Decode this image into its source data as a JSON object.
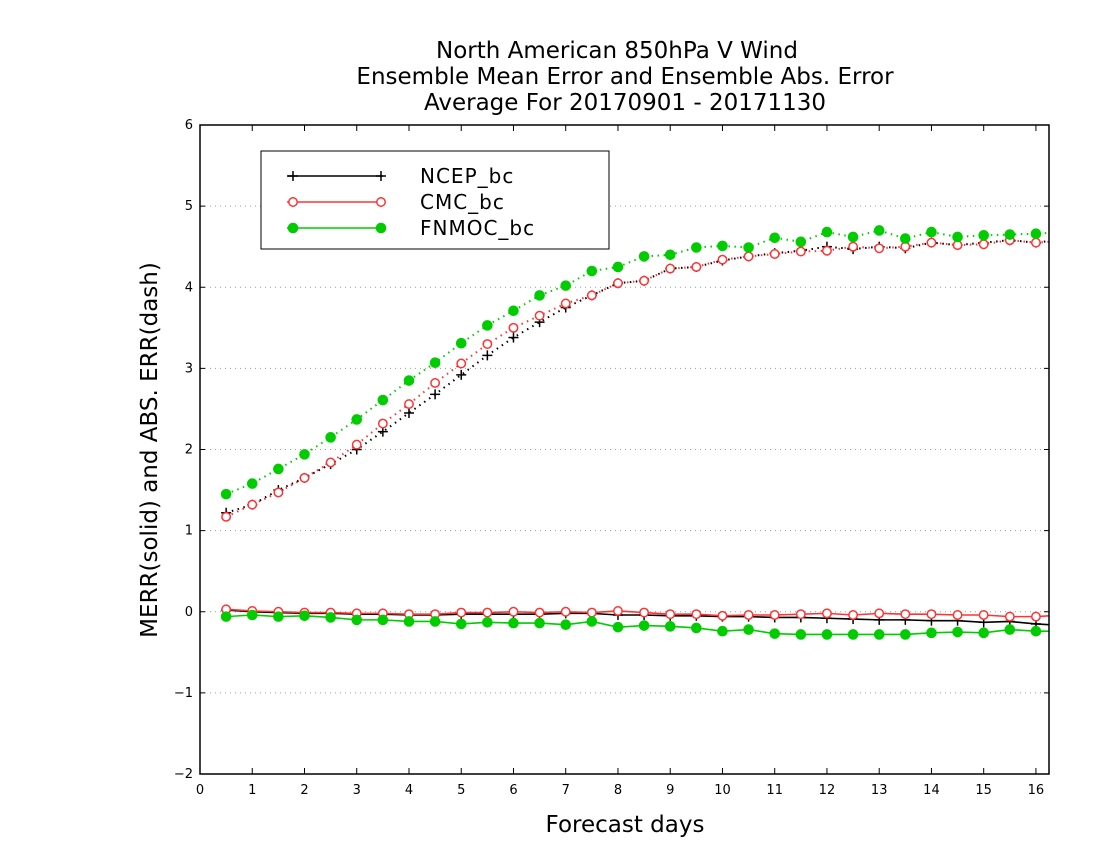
{
  "chart_data": {
    "type": "line",
    "title": [
      "North American 850hPa V Wind",
      "Ensemble Mean Error and Ensemble Abs. Error",
      "Average For 20170901 - 20171130"
    ],
    "xlabel": "Forecast days",
    "ylabel": "MERR(solid) and ABS. ERR(dash)",
    "xlim": [
      0,
      16.25
    ],
    "ylim": [
      -2,
      6
    ],
    "xticks": [
      0,
      1,
      2,
      3,
      4,
      5,
      6,
      7,
      8,
      9,
      10,
      11,
      12,
      13,
      14,
      15,
      16
    ],
    "yticks": [
      -2,
      -1,
      0,
      1,
      2,
      3,
      4,
      5,
      6
    ],
    "x": [
      0.5,
      1.0,
      1.5,
      2.0,
      2.5,
      3.0,
      3.5,
      4.0,
      4.5,
      5.0,
      5.5,
      6.0,
      6.5,
      7.0,
      7.5,
      8.0,
      8.5,
      9.0,
      9.5,
      10.0,
      10.5,
      11.0,
      11.5,
      12.0,
      12.5,
      13.0,
      13.5,
      14.0,
      14.5,
      15.0,
      15.5,
      16.0,
      16.25
    ],
    "grid": "y-dotted",
    "legend_position": "top-left",
    "series": [
      {
        "name": "NCEP_bc",
        "color": "#000000",
        "marker": "plus",
        "merr": [
          0.02,
          0.0,
          -0.01,
          -0.02,
          -0.02,
          -0.03,
          -0.03,
          -0.04,
          -0.04,
          -0.03,
          -0.03,
          -0.03,
          -0.03,
          -0.02,
          -0.02,
          -0.04,
          -0.04,
          -0.05,
          -0.05,
          -0.06,
          -0.06,
          -0.07,
          -0.07,
          -0.08,
          -0.09,
          -0.1,
          -0.1,
          -0.11,
          -0.11,
          -0.13,
          -0.12,
          -0.15,
          -0.16
        ],
        "abs_err": [
          1.22,
          1.32,
          1.5,
          1.65,
          1.82,
          2.0,
          2.22,
          2.45,
          2.68,
          2.92,
          3.16,
          3.38,
          3.57,
          3.75,
          3.9,
          4.05,
          4.08,
          4.23,
          4.25,
          4.33,
          4.38,
          4.42,
          4.45,
          4.5,
          4.47,
          4.5,
          4.48,
          4.55,
          4.52,
          4.55,
          4.58,
          4.55,
          4.57
        ]
      },
      {
        "name": "CMC_bc",
        "color": "#ff3333",
        "marker": "open-circle",
        "merr": [
          0.03,
          0.01,
          0.0,
          -0.01,
          -0.01,
          -0.02,
          -0.02,
          -0.03,
          -0.03,
          -0.01,
          -0.01,
          0.0,
          -0.01,
          0.0,
          -0.01,
          0.01,
          -0.01,
          -0.03,
          -0.03,
          -0.05,
          -0.04,
          -0.04,
          -0.03,
          -0.02,
          -0.04,
          -0.02,
          -0.03,
          -0.03,
          -0.04,
          -0.04,
          -0.06,
          -0.06,
          -0.05
        ],
        "abs_err": [
          1.17,
          1.32,
          1.47,
          1.65,
          1.84,
          2.06,
          2.32,
          2.56,
          2.82,
          3.06,
          3.3,
          3.5,
          3.65,
          3.8,
          3.9,
          4.05,
          4.08,
          4.23,
          4.25,
          4.34,
          4.38,
          4.41,
          4.44,
          4.45,
          4.5,
          4.48,
          4.5,
          4.55,
          4.52,
          4.53,
          4.58,
          4.55,
          4.56
        ]
      },
      {
        "name": "FNMOC_bc",
        "color": "#00cc00",
        "marker": "filled-circle",
        "merr": [
          -0.06,
          -0.04,
          -0.06,
          -0.05,
          -0.07,
          -0.1,
          -0.1,
          -0.12,
          -0.12,
          -0.15,
          -0.13,
          -0.14,
          -0.14,
          -0.16,
          -0.12,
          -0.19,
          -0.17,
          -0.18,
          -0.2,
          -0.24,
          -0.22,
          -0.27,
          -0.28,
          -0.28,
          -0.28,
          -0.28,
          -0.28,
          -0.26,
          -0.25,
          -0.26,
          -0.22,
          -0.24,
          -0.24
        ],
        "abs_err": [
          1.45,
          1.58,
          1.76,
          1.94,
          2.15,
          2.37,
          2.61,
          2.85,
          3.07,
          3.31,
          3.53,
          3.71,
          3.9,
          4.02,
          4.2,
          4.25,
          4.38,
          4.4,
          4.49,
          4.51,
          4.49,
          4.61,
          4.56,
          4.68,
          4.62,
          4.7,
          4.6,
          4.68,
          4.62,
          4.64,
          4.65,
          4.66,
          4.67
        ]
      }
    ]
  }
}
